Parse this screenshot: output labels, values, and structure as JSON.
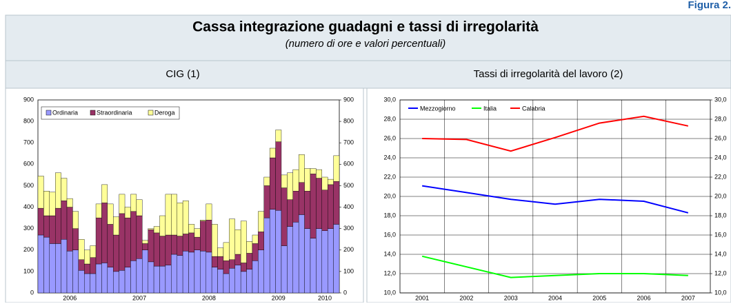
{
  "header": {
    "figure_label": "Figura 2.",
    "title": "Cassa integrazione guadagni e tassi di irregolarità",
    "subtitle": "(numero di ore e valori percentuali)"
  },
  "chart_data": [
    {
      "type": "stacked-bar",
      "title": "CIG (1)",
      "categories": [
        null,
        null,
        null,
        null,
        null,
        "2006",
        null,
        null,
        null,
        null,
        null,
        null,
        null,
        null,
        null,
        null,
        null,
        "2007",
        null,
        null,
        null,
        null,
        null,
        null,
        null,
        null,
        null,
        null,
        null,
        "2008",
        null,
        null,
        null,
        null,
        null,
        null,
        null,
        null,
        null,
        null,
        null,
        "2009",
        null,
        null,
        null,
        null,
        null,
        null,
        null,
        "2010",
        null,
        null
      ],
      "series": [
        {
          "name": "Ordinaria",
          "color": "#9999ff",
          "values": [
            270,
            260,
            230,
            230,
            250,
            195,
            200,
            105,
            90,
            90,
            135,
            140,
            120,
            100,
            105,
            120,
            150,
            160,
            200,
            145,
            125,
            125,
            130,
            180,
            175,
            195,
            190,
            200,
            195,
            190,
            120,
            110,
            90,
            115,
            130,
            100,
            110,
            150,
            200,
            350,
            390,
            385,
            220,
            310,
            330,
            365,
            300,
            255,
            300,
            290,
            300,
            320
          ]
        },
        {
          "name": "Straordinaria",
          "color": "#993366",
          "values": [
            125,
            100,
            130,
            165,
            180,
            205,
            100,
            50,
            45,
            75,
            215,
            280,
            200,
            170,
            265,
            230,
            230,
            200,
            30,
            150,
            155,
            140,
            140,
            90,
            90,
            80,
            90,
            60,
            140,
            150,
            50,
            60,
            60,
            40,
            50,
            40,
            75,
            80,
            85,
            150,
            240,
            320,
            270,
            125,
            145,
            150,
            175,
            300,
            235,
            190,
            205,
            200
          ]
        },
        {
          "name": "Deroga",
          "color": "#ffff99",
          "values": [
            150,
            115,
            110,
            165,
            105,
            40,
            80,
            95,
            65,
            55,
            65,
            85,
            95,
            85,
            90,
            50,
            80,
            75,
            15,
            5,
            30,
            95,
            190,
            190,
            155,
            155,
            40,
            40,
            5,
            75,
            150,
            40,
            85,
            190,
            115,
            195,
            55,
            40,
            95,
            40,
            45,
            55,
            60,
            125,
            100,
            130,
            105,
            25,
            40,
            60,
            25,
            120
          ]
        }
      ],
      "ylim": [
        0,
        900
      ],
      "yticks": [
        0,
        100,
        200,
        300,
        400,
        500,
        600,
        700,
        800,
        900
      ],
      "legend": "top-left"
    },
    {
      "type": "line",
      "title": "Tassi di irregolarità del lavoro (2)",
      "categories": [
        "2001",
        "2002",
        "2003",
        "2004",
        "2005",
        "2006",
        "2007"
      ],
      "series": [
        {
          "name": "Mezzogiorno",
          "color": "#0000ff",
          "values": [
            21.1,
            20.4,
            19.7,
            19.2,
            19.7,
            19.5,
            18.3
          ]
        },
        {
          "name": "Italia",
          "color": "#00ff00",
          "values": [
            13.8,
            12.7,
            11.6,
            11.8,
            12.0,
            12.0,
            11.8
          ]
        },
        {
          "name": "Calabria",
          "color": "#ff0000",
          "values": [
            26.0,
            25.9,
            24.7,
            26.1,
            27.6,
            28.3,
            27.3
          ]
        }
      ],
      "ylim": [
        10,
        30
      ],
      "yticks": [
        {
          "value": 10,
          "label": "10,0"
        },
        {
          "value": 12,
          "label": "12,0"
        },
        {
          "value": 14,
          "label": "14,0"
        },
        {
          "value": 16,
          "label": "16,0"
        },
        {
          "value": 18,
          "label": "18,0"
        },
        {
          "value": 20,
          "label": "20,0"
        },
        {
          "value": 22,
          "label": "22,0"
        },
        {
          "value": 24,
          "label": "24,0"
        },
        {
          "value": 26,
          "label": "26,0"
        },
        {
          "value": 28,
          "label": "28,0"
        },
        {
          "value": 30,
          "label": "30,0"
        }
      ],
      "grid": true,
      "legend": "top-left"
    }
  ]
}
